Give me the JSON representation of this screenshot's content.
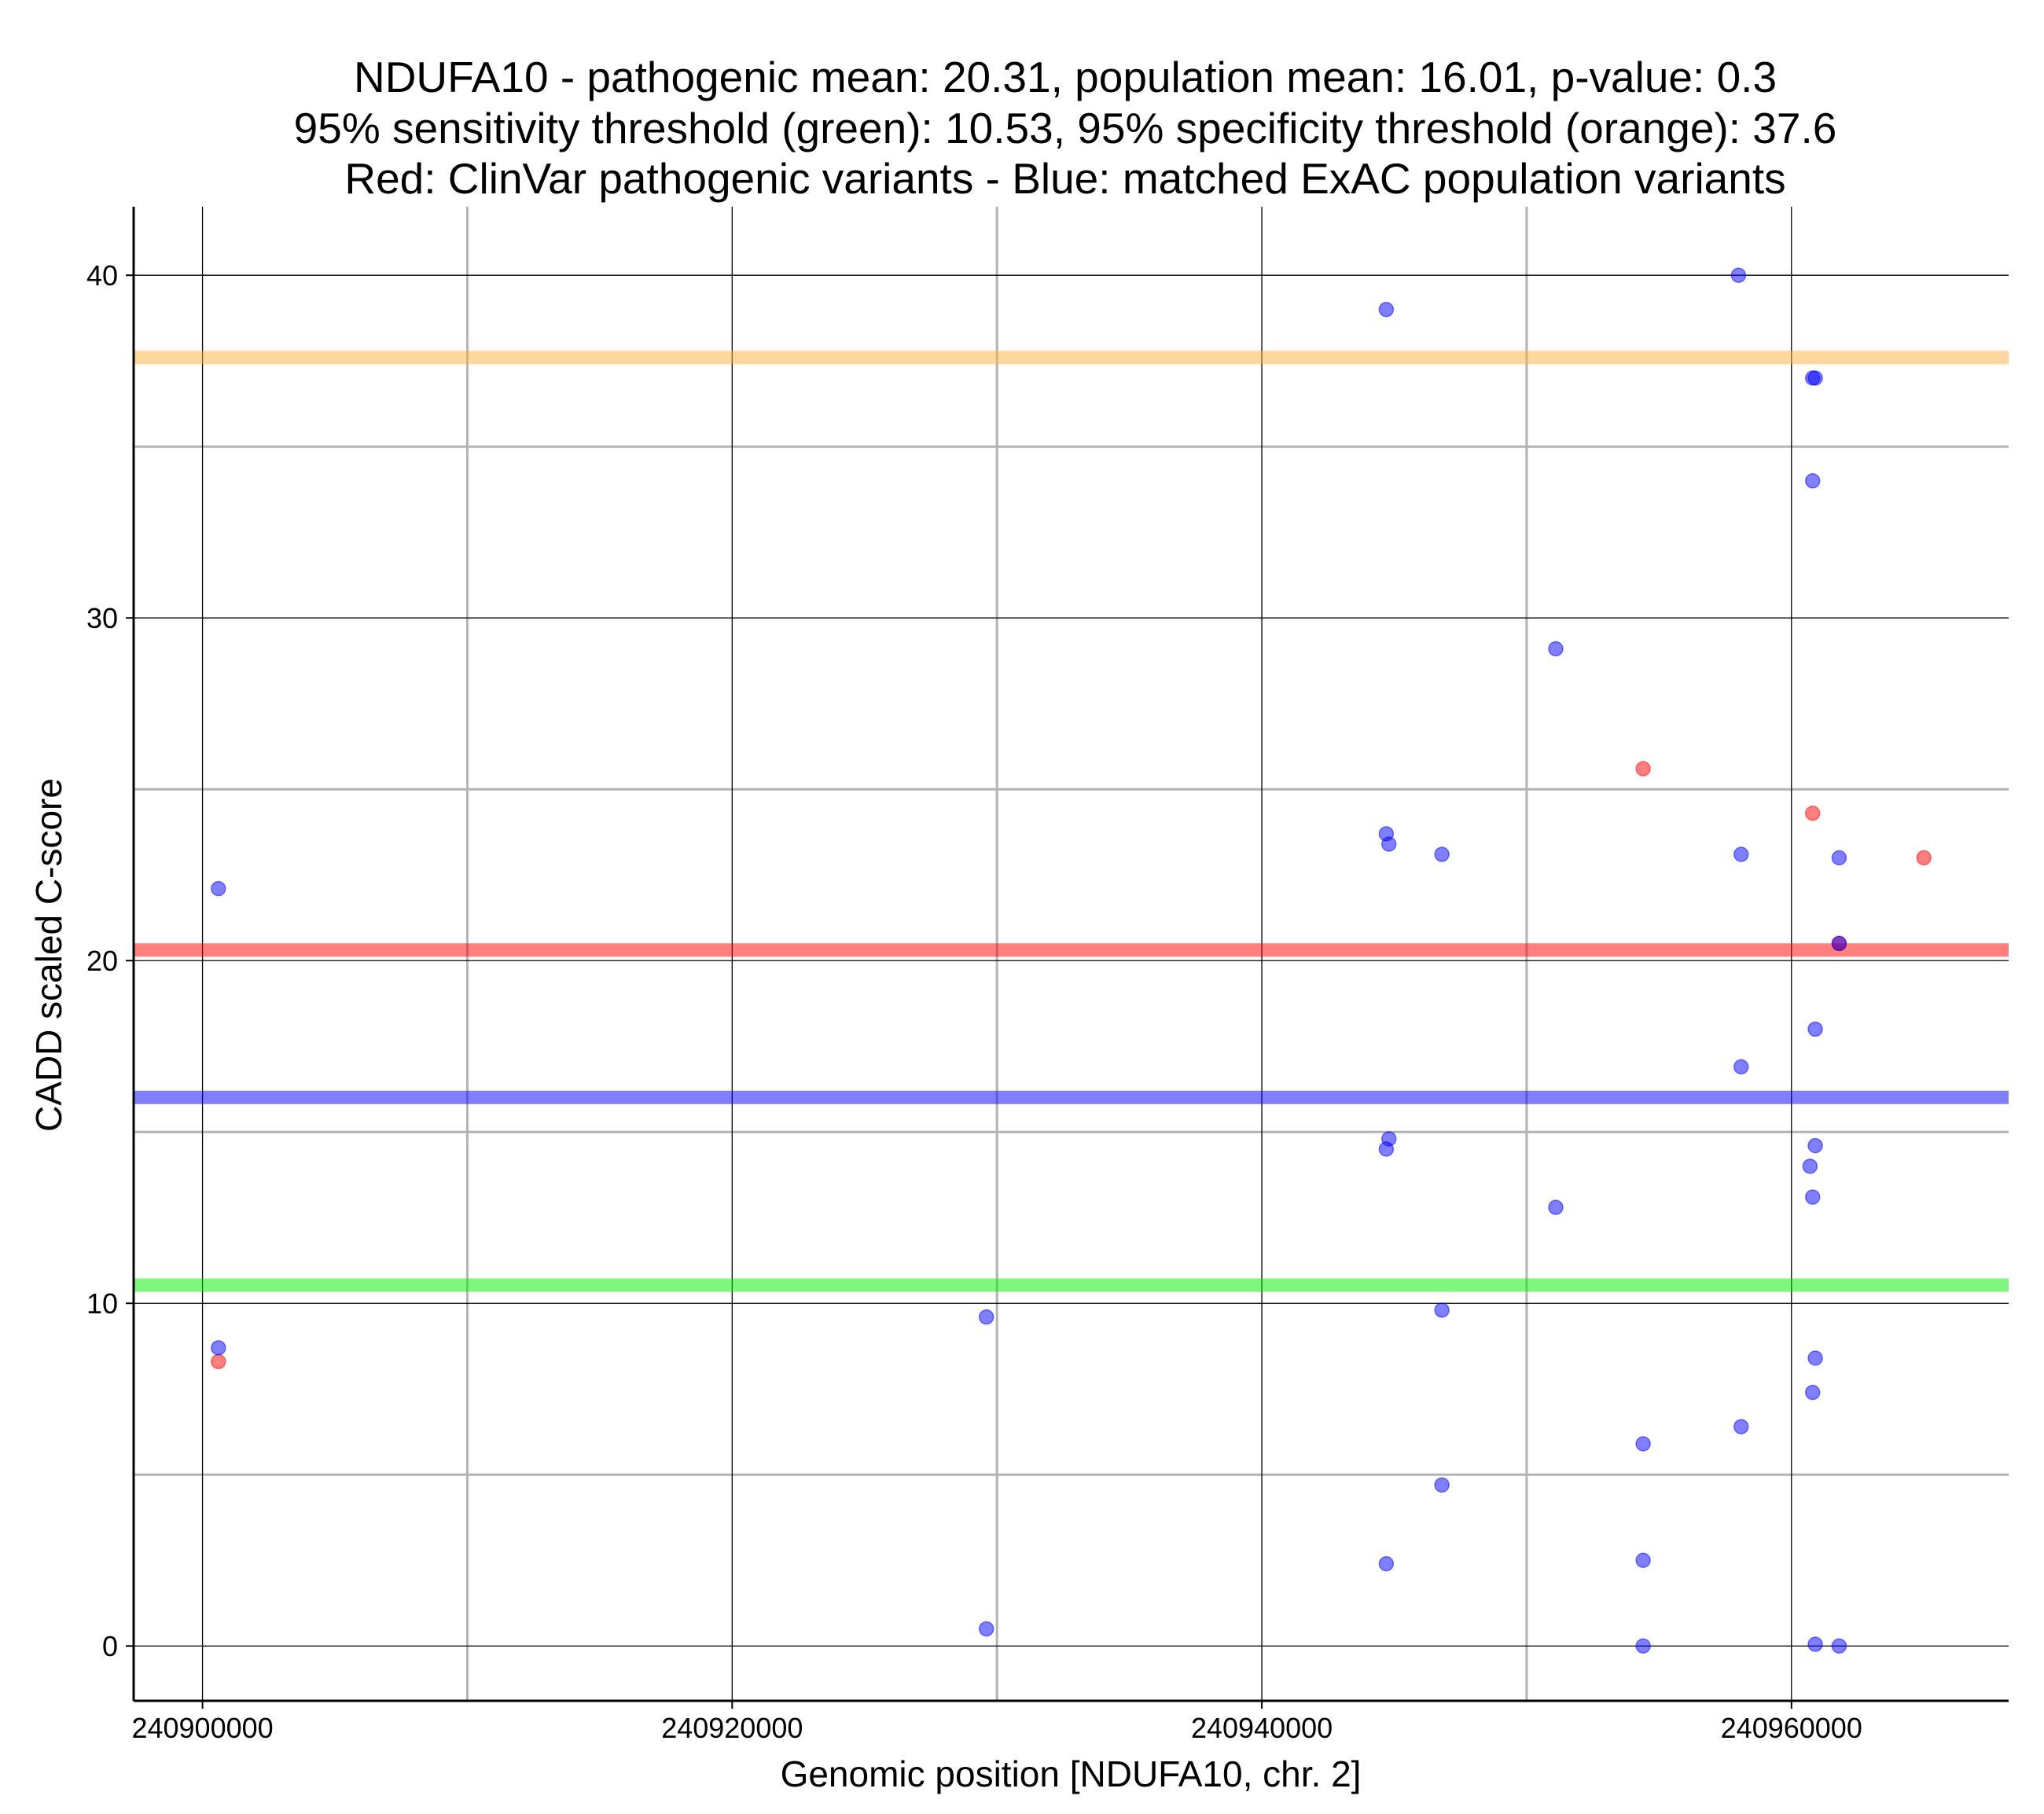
{
  "chart_data": {
    "type": "scatter",
    "title_lines": [
      "NDUFA10 - pathogenic mean: 20.31, population mean: 16.01, p-value: 0.3",
      "95% sensitivity threshold (green): 10.53, 95% specificity threshold (orange): 37.6",
      "Red: ClinVar pathogenic variants - Blue: matched ExAC population variants"
    ],
    "xlabel": "Genomic position [NDUFA10, chr. 2]",
    "ylabel": "CADD scaled C-score",
    "xlim": [
      240897400,
      240968200
    ],
    "ylim": [
      -1.6,
      42.0
    ],
    "x_major_ticks": [
      240900000,
      240920000,
      240940000,
      240960000
    ],
    "x_minor_ticks": [
      240910000,
      240930000,
      240950000
    ],
    "y_major_ticks": [
      0,
      10,
      20,
      30,
      40
    ],
    "y_minor_ticks": [
      5,
      15,
      25,
      35
    ],
    "x_tick_labels": [
      "240900000",
      "240920000",
      "240940000",
      "240960000"
    ],
    "y_tick_labels": [
      "0",
      "10",
      "20",
      "30",
      "40"
    ],
    "grid": true,
    "hlines": [
      {
        "name": "specificity threshold",
        "value": 37.6,
        "color": "#fdb040"
      },
      {
        "name": "pathogenic mean",
        "value": 20.31,
        "color": "#ff0000"
      },
      {
        "name": "population mean",
        "value": 16.01,
        "color": "#0000ff"
      },
      {
        "name": "sensitivity threshold",
        "value": 10.53,
        "color": "#00ee00"
      }
    ],
    "series": [
      {
        "name": "ClinVar pathogenic variants",
        "color": "#ff0000",
        "points": [
          [
            240900600,
            8.3
          ],
          [
            240954400,
            25.6
          ],
          [
            240960800,
            24.3
          ],
          [
            240961800,
            20.5
          ],
          [
            240965000,
            23.0
          ]
        ]
      },
      {
        "name": "matched ExAC population variants",
        "color": "#0000ff",
        "points": [
          [
            240900600,
            22.1
          ],
          [
            240900600,
            8.7
          ],
          [
            240929600,
            9.6
          ],
          [
            240929600,
            0.5
          ],
          [
            240944700,
            39.0
          ],
          [
            240944700,
            23.7
          ],
          [
            240944800,
            23.4
          ],
          [
            240944800,
            14.8
          ],
          [
            240944700,
            14.5
          ],
          [
            240944700,
            2.4
          ],
          [
            240946800,
            23.1
          ],
          [
            240946800,
            9.8
          ],
          [
            240946800,
            4.7
          ],
          [
            240951100,
            29.1
          ],
          [
            240951100,
            12.8
          ],
          [
            240954400,
            5.9
          ],
          [
            240954400,
            2.5
          ],
          [
            240954400,
            0.0
          ],
          [
            240958000,
            40.0
          ],
          [
            240958100,
            23.1
          ],
          [
            240958100,
            16.9
          ],
          [
            240958100,
            6.4
          ],
          [
            240960800,
            37.0
          ],
          [
            240960900,
            37.0
          ],
          [
            240960800,
            34.0
          ],
          [
            240960900,
            18.0
          ],
          [
            240960900,
            14.6
          ],
          [
            240960700,
            14.0
          ],
          [
            240960800,
            13.1
          ],
          [
            240960900,
            8.4
          ],
          [
            240960800,
            7.4
          ],
          [
            240960900,
            0.05
          ],
          [
            240961800,
            23.0
          ],
          [
            240961800,
            20.5
          ],
          [
            240961800,
            0.0
          ]
        ]
      }
    ]
  }
}
